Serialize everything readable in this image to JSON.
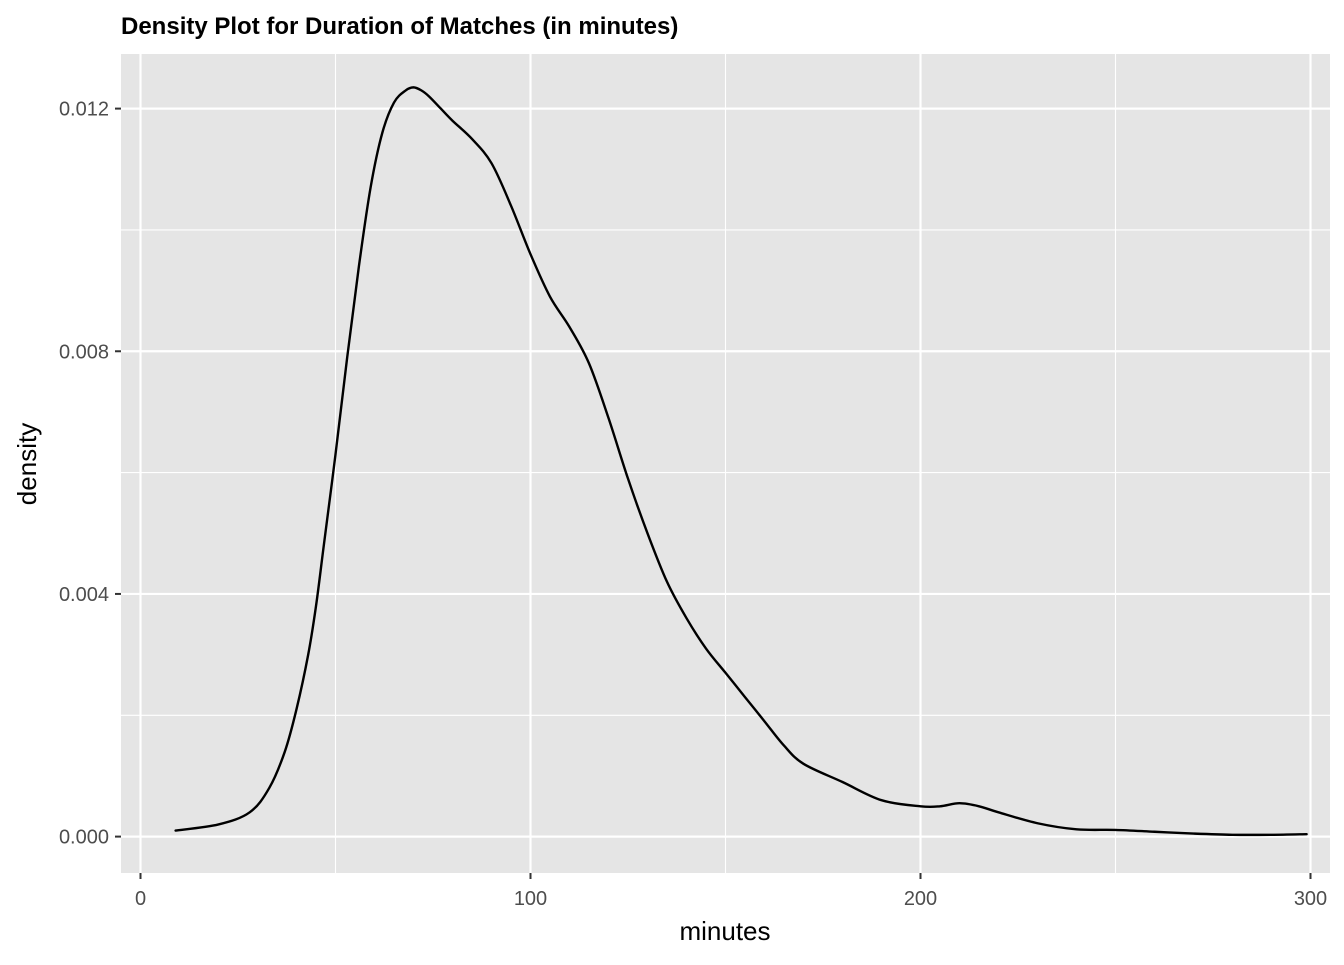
{
  "chart_data": {
    "type": "line",
    "title": "Density Plot for Duration of Matches (in minutes)",
    "xlabel": "minutes",
    "ylabel": "density",
    "xlim": [
      -5,
      305
    ],
    "ylim": [
      -0.0006,
      0.0129
    ],
    "x_ticks": [
      0,
      100,
      200,
      300
    ],
    "x_tick_labels": [
      "0",
      "100",
      "200",
      "300"
    ],
    "y_ticks": [
      0.0,
      0.004,
      0.008,
      0.012
    ],
    "y_tick_labels": [
      "0.000",
      "0.004",
      "0.008",
      "0.012"
    ],
    "x_minor_grid": [
      50,
      150,
      250
    ],
    "y_minor_grid": [
      0.002,
      0.006,
      0.01
    ],
    "grid": true,
    "panel_background": "#e5e5e5",
    "grid_color": "#ffffff",
    "line_color": "#000000",
    "series": [
      {
        "x": [
          9,
          20,
          28,
          33,
          37,
          40,
          43,
          45,
          47,
          50,
          53,
          56,
          59,
          62,
          65,
          68,
          70,
          72,
          74,
          77,
          80,
          85,
          90,
          95,
          100,
          105,
          110,
          115,
          120,
          125,
          130,
          135,
          140,
          145,
          150,
          155,
          160,
          165,
          170,
          180,
          190,
          200,
          205,
          210,
          215,
          220,
          230,
          240,
          250,
          260,
          270,
          280,
          290,
          299
        ],
        "y": [
          0.0001,
          0.0002,
          0.0004,
          0.0008,
          0.0014,
          0.0021,
          0.003,
          0.0038,
          0.0048,
          0.0063,
          0.0079,
          0.0094,
          0.0107,
          0.0116,
          0.0121,
          0.0123,
          0.01235,
          0.0123,
          0.0122,
          0.012,
          0.0118,
          0.0115,
          0.0111,
          0.0104,
          0.0096,
          0.0089,
          0.0084,
          0.0078,
          0.0069,
          0.0059,
          0.005,
          0.0042,
          0.0036,
          0.0031,
          0.0027,
          0.0023,
          0.0019,
          0.0015,
          0.0012,
          0.0009,
          0.0006,
          0.0005,
          0.0005,
          0.00055,
          0.0005,
          0.0004,
          0.00022,
          0.00012,
          0.00011,
          8e-05,
          5e-05,
          3e-05,
          3e-05,
          4e-05
        ]
      }
    ]
  }
}
